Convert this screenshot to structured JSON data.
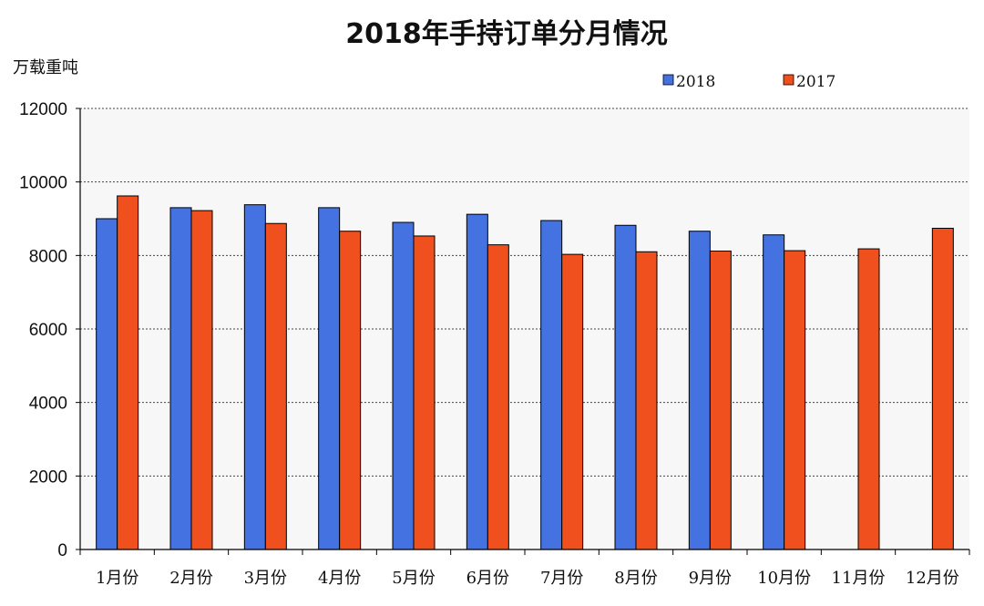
{
  "chart_data": {
    "type": "bar",
    "title": "2018年手持订单分月情况",
    "ylabel": "万载重吨",
    "xlabel": "",
    "categories": [
      "1月份",
      "2月份",
      "3月份",
      "4月份",
      "5月份",
      "6月份",
      "7月份",
      "8月份",
      "9月份",
      "10月份",
      "11月份",
      "12月份"
    ],
    "series": [
      {
        "name": "2018",
        "color": "#4472e0",
        "values": [
          9000,
          9300,
          9380,
          9300,
          8900,
          9120,
          8950,
          8820,
          8660,
          8560,
          null,
          null
        ]
      },
      {
        "name": "2017",
        "color": "#f0501e",
        "values": [
          9620,
          9220,
          8870,
          8660,
          8530,
          8290,
          8030,
          8100,
          8120,
          8130,
          8180,
          8740
        ]
      }
    ],
    "ylim": [
      0,
      12000
    ],
    "yticks": [
      0,
      2000,
      4000,
      6000,
      8000,
      10000,
      12000
    ],
    "grid": true,
    "legend_position": "top-right"
  }
}
